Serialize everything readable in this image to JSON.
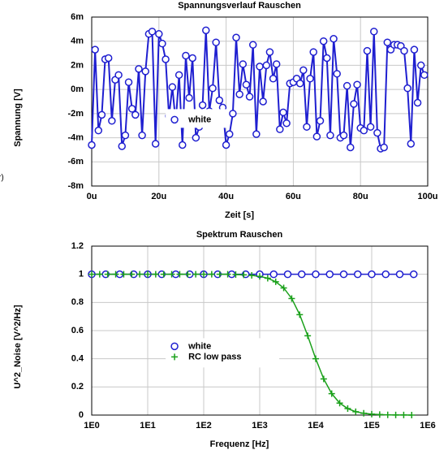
{
  "side_text": "r)",
  "chart_data": [
    {
      "type": "line",
      "title": "Spannungsverlauf Rauschen",
      "xlabel": "Zeit [s]",
      "ylabel": "Spannung [V]",
      "x": [
        0,
        1,
        2,
        3,
        4,
        5,
        6,
        7,
        8,
        9,
        10,
        11,
        12,
        13,
        14,
        15,
        16,
        17,
        18,
        19,
        20,
        21,
        22,
        23,
        24,
        25,
        26,
        27,
        28,
        29,
        30,
        31,
        32,
        33,
        34,
        35,
        36,
        37,
        38,
        39,
        40,
        41,
        42,
        43,
        44,
        45,
        46,
        47,
        48,
        49,
        50,
        51,
        52,
        53,
        54,
        55,
        56,
        57,
        58,
        59,
        60,
        61,
        62,
        63,
        64,
        65,
        66,
        67,
        68,
        69,
        70,
        71,
        72,
        73,
        74,
        75,
        76,
        77,
        78,
        79,
        80,
        81,
        82,
        83,
        84,
        85,
        86,
        87,
        88,
        89,
        90,
        91,
        92,
        93,
        94,
        95,
        96,
        97,
        98,
        99
      ],
      "series": [
        {
          "name": "white",
          "color": "#1f1fd0",
          "marker": "circle",
          "values": [
            -4.6,
            3.3,
            -3.4,
            -2.1,
            2.5,
            2.6,
            -2.6,
            0.8,
            1.2,
            -4.7,
            -3.8,
            0.6,
            -1.6,
            -2.1,
            1.7,
            -3.8,
            1.5,
            4.6,
            4.8,
            -4.5,
            4.6,
            3.8,
            2.5,
            -2.2,
            0.2,
            -2.7,
            1.2,
            -4.6,
            2.8,
            -0.7,
            2.6,
            -4.0,
            -3.1,
            -1.3,
            4.9,
            -1.8,
            0.1,
            3.9,
            -0.9,
            -1.5,
            -4.6,
            -3.7,
            -2.0,
            4.3,
            -0.4,
            2.1,
            0.4,
            -0.6,
            3.7,
            -3.7,
            1.9,
            -1.0,
            2.0,
            3.1,
            0.9,
            2.1,
            -3.3,
            -1.9,
            -2.8,
            0.5,
            0.6,
            0.9,
            0.5,
            1.6,
            -3.1,
            0.9,
            3.1,
            -3.9,
            -2.6,
            4.0,
            2.6,
            -3.8,
            4.2,
            1.3,
            -4.0,
            -3.8,
            0.3,
            -4.8,
            -1.2,
            0.4,
            -3.2,
            -3.4,
            3.2,
            -3.1,
            4.8,
            -3.6,
            -4.9,
            -4.8,
            3.9,
            3.3,
            3.7,
            3.7,
            3.6,
            3.2,
            0.1,
            -4.5,
            3.3,
            -1.1,
            2.0,
            1.2
          ]
        }
      ],
      "xlim": [
        0,
        100
      ],
      "xticks": [
        {
          "value": 0,
          "label": "0u"
        },
        {
          "value": 20,
          "label": "20u"
        },
        {
          "value": 40,
          "label": "40u"
        },
        {
          "value": 60,
          "label": "60u"
        },
        {
          "value": 80,
          "label": "80u"
        },
        {
          "value": 100,
          "label": "100u"
        }
      ],
      "ylim": [
        -8,
        6
      ],
      "yticks": [
        {
          "value": -8,
          "label": "-8m"
        },
        {
          "value": -6,
          "label": "-6m"
        },
        {
          "value": -4,
          "label": "-4m"
        },
        {
          "value": -2,
          "label": "-2m"
        },
        {
          "value": 0,
          "label": "0m"
        },
        {
          "value": 2,
          "label": "2m"
        },
        {
          "value": 4,
          "label": "4m"
        },
        {
          "value": 6,
          "label": "6m"
        }
      ],
      "grid": true,
      "legend": "left"
    },
    {
      "type": "line",
      "title": "Spektrum Rauschen",
      "xlabel": "Frequenz [Hz]",
      "ylabel": "U^2_Noise [V^2/Hz]",
      "xscale": "log",
      "series": [
        {
          "name": "white",
          "color": "#1f1fd0",
          "marker": "circle",
          "x": [
            1,
            1.778,
            3.162,
            5.623,
            10,
            17.78,
            31.62,
            56.23,
            100,
            177.8,
            316.2,
            562.3,
            1000,
            1778,
            3162,
            5623,
            10000,
            17780,
            31620,
            56230,
            100000,
            177800,
            316200,
            562300
          ],
          "values": [
            1,
            1,
            1,
            1,
            1,
            1,
            1,
            1,
            1,
            1,
            1,
            1,
            1,
            1,
            1,
            1,
            1,
            1,
            1,
            1,
            1,
            1,
            1,
            1
          ]
        },
        {
          "name": "RC low pass",
          "color": "#1aa01a",
          "marker": "plus",
          "x": [
            1,
            1.389,
            1.931,
            2.683,
            3.728,
            5.179,
            7.197,
            10,
            13.89,
            19.31,
            26.83,
            37.28,
            51.79,
            71.97,
            100,
            138.9,
            193.1,
            268.3,
            372.8,
            517.9,
            719.7,
            1000,
            1389,
            1931,
            2683,
            3728,
            5179,
            7197,
            10000,
            13890,
            19310,
            26830,
            37280,
            51790,
            71970,
            100000,
            138900,
            193100,
            268300,
            372800,
            517900
          ],
          "values": [
            1,
            1,
            1,
            1,
            1,
            1,
            1,
            1,
            1,
            1,
            1,
            1,
            1,
            1,
            1,
            1,
            1,
            1,
            0.998,
            0.996,
            0.992,
            0.985,
            0.972,
            0.947,
            0.903,
            0.828,
            0.713,
            0.563,
            0.4,
            0.257,
            0.152,
            0.085,
            0.046,
            0.024,
            0.0127,
            0.0066,
            0.0034,
            0.0018,
            0.0009,
            0.0005,
            0.0002
          ]
        }
      ],
      "xlim": [
        1,
        1000000
      ],
      "xticks": [
        {
          "value": 1,
          "label": "1E0"
        },
        {
          "value": 10,
          "label": "1E1"
        },
        {
          "value": 100,
          "label": "1E2"
        },
        {
          "value": 1000,
          "label": "1E3"
        },
        {
          "value": 10000,
          "label": "1E4"
        },
        {
          "value": 100000,
          "label": "1E5"
        },
        {
          "value": 1000000,
          "label": "1E6"
        }
      ],
      "ylim": [
        0,
        1.2
      ],
      "yticks": [
        0,
        0.2,
        0.4,
        0.6,
        0.8,
        1,
        1.2
      ],
      "grid": true,
      "legend": "left"
    }
  ]
}
